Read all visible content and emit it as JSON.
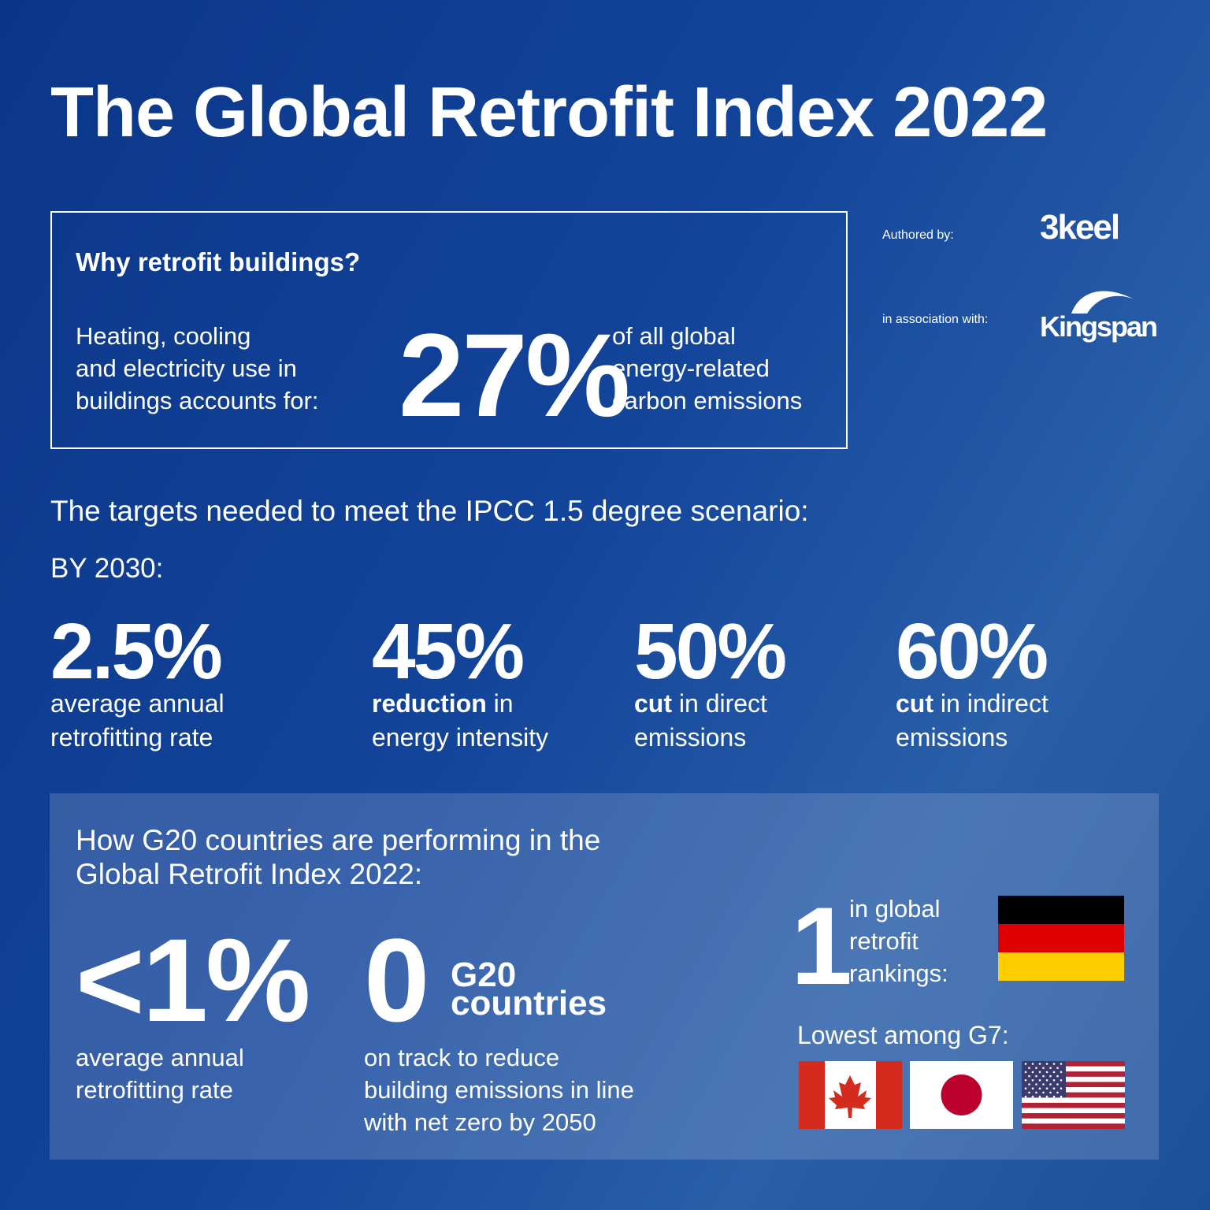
{
  "title": "The Global Retrofit Index 2022",
  "why": {
    "heading": "Why retrofit buildings?",
    "lead": [
      "Heating, cooling",
      "and electricity use in",
      "buildings accounts for:"
    ],
    "stat": "27%",
    "tail": [
      "of all global",
      "energy-related",
      "carbon emissions"
    ]
  },
  "credits": {
    "authored_label": "Authored by:",
    "author": "3keel",
    "association_label": "in association with:",
    "partner": "Kingspan"
  },
  "targets": {
    "heading": "The targets needed to meet the IPCC 1.5 degree scenario:",
    "period": "BY 2030:",
    "items": [
      {
        "stat": "2.5%",
        "lines": [
          "average annual",
          "retrofitting rate"
        ]
      },
      {
        "stat": "45%",
        "bold": "reduction",
        "lines": [
          "in",
          "energy intensity"
        ]
      },
      {
        "stat": "50%",
        "bold": "cut",
        "lines": [
          "in direct",
          "emissions"
        ]
      },
      {
        "stat": "60%",
        "bold": "cut",
        "lines": [
          "in indirect",
          "emissions"
        ]
      }
    ]
  },
  "g20": {
    "heading": [
      "How G20 countries are performing in the",
      "Global Retrofit Index 2022:"
    ],
    "items": [
      {
        "stat": "<1%",
        "lines": [
          "average annual",
          "retrofitting rate"
        ]
      },
      {
        "stat": "0",
        "unit": [
          "G20",
          "countries"
        ],
        "lines": [
          "on track to reduce",
          "building emissions in line",
          "with net zero by 2050"
        ]
      }
    ],
    "rank": {
      "stat": "1",
      "lines": [
        "in global",
        "retrofit",
        "rankings:"
      ]
    },
    "lowest": "Lowest among G7:"
  }
}
